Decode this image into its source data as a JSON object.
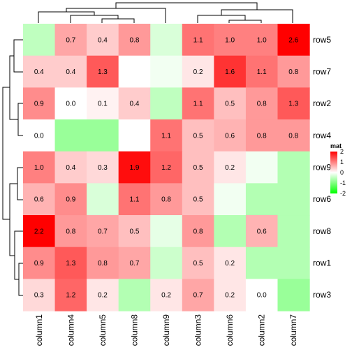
{
  "chart_data": {
    "type": "heatmap",
    "rows": [
      "row5",
      "row7",
      "row2",
      "row4",
      "row9",
      "row6",
      "row8",
      "row1",
      "row3"
    ],
    "columns": [
      "column1",
      "column4",
      "column5",
      "column8",
      "column9",
      "column3",
      "column6",
      "column2",
      "column7"
    ],
    "values": [
      [
        -0.5,
        0.7,
        0.4,
        0.8,
        -0.3,
        1.1,
        1.0,
        1.0,
        2.6
      ],
      [
        0.4,
        0.4,
        1.3,
        0.0,
        -0.1,
        0.2,
        1.6,
        1.1,
        0.8
      ],
      [
        0.9,
        0.0,
        0.1,
        0.4,
        -0.5,
        1.1,
        0.5,
        0.8,
        1.3
      ],
      [
        0.0,
        -0.8,
        -0.8,
        0.0,
        1.1,
        0.5,
        0.6,
        0.8,
        0.8
      ],
      [
        1.0,
        0.4,
        0.3,
        1.9,
        1.2,
        0.5,
        0.2,
        -0.1,
        -0.6
      ],
      [
        0.6,
        0.9,
        -0.3,
        1.1,
        0.8,
        0.5,
        -0.1,
        -0.6,
        -0.6
      ],
      [
        2.2,
        0.8,
        0.7,
        0.5,
        -0.2,
        0.8,
        -0.6,
        0.6,
        -0.6
      ],
      [
        0.9,
        1.3,
        0.8,
        0.7,
        -0.4,
        0.5,
        0.2,
        -0.6,
        -0.6
      ],
      [
        0.3,
        1.2,
        0.2,
        -0.6,
        0.2,
        0.7,
        0.2,
        0.0,
        -0.8
      ]
    ],
    "labels": [
      [
        "",
        "0.7",
        "0.4",
        "0.8",
        "",
        "1.1",
        "1.0",
        "1.0",
        "2.6"
      ],
      [
        "0.4",
        "0.4",
        "1.3",
        "",
        "",
        "0.2",
        "1.6",
        "1.1",
        "0.8"
      ],
      [
        "0.9",
        "0.0",
        "0.1",
        "0.4",
        "",
        "1.1",
        "0.5",
        "0.8",
        "1.3"
      ],
      [
        "0.0",
        "",
        "",
        "",
        "1.1",
        "0.5",
        "0.6",
        "0.8",
        "0.8"
      ],
      [
        "1.0",
        "0.4",
        "0.3",
        "1.9",
        "1.2",
        "0.5",
        "0.2",
        "",
        ""
      ],
      [
        "0.6",
        "0.9",
        "",
        "1.1",
        "0.8",
        "0.5",
        "",
        "",
        ""
      ],
      [
        "2.2",
        "0.8",
        "0.7",
        "0.5",
        "",
        "0.8",
        "",
        "0.6",
        ""
      ],
      [
        "0.9",
        "1.3",
        "0.8",
        "0.7",
        "",
        "0.5",
        "0.2",
        "",
        ""
      ],
      [
        "0.3",
        "1.2",
        "0.2",
        "",
        "0.2",
        "0.7",
        "0.2",
        "0.0",
        ""
      ]
    ],
    "color_scale": {
      "min": -2,
      "mid": 0,
      "max": 2,
      "low": "#00ff00",
      "mid_color": "#ffffff",
      "high": "#ff0000"
    },
    "legend": {
      "title": "mat",
      "ticks": [
        "2",
        "1",
        "0",
        "-1",
        "-2"
      ],
      "tick_values": [
        2,
        1,
        0,
        -1,
        -2
      ]
    },
    "row_dendrogram": true,
    "column_dendrogram": true
  }
}
